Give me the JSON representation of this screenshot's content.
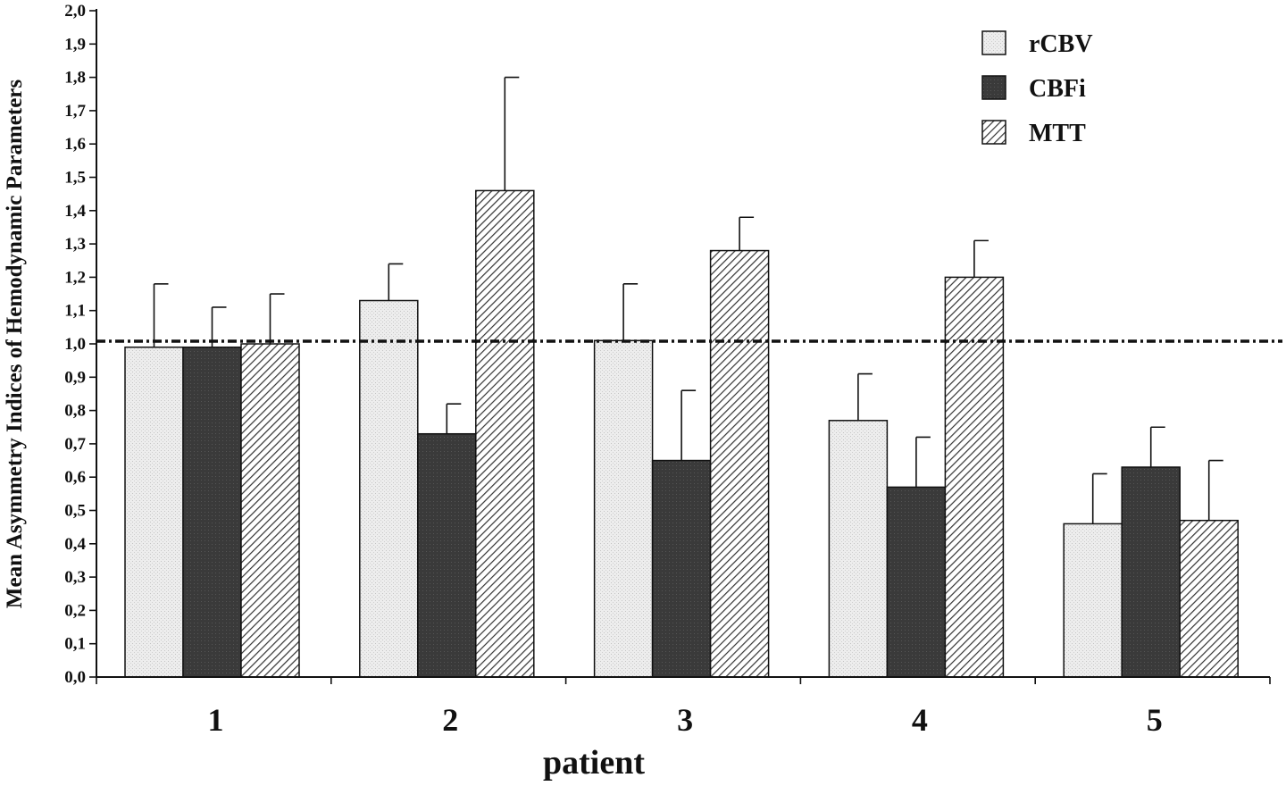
{
  "chart_data": {
    "type": "bar",
    "title": "",
    "xlabel": "patient",
    "ylabel": "Mean Asymmetry Indices of Hemodynamic Parameters",
    "ylim": [
      0,
      2.0
    ],
    "ytick_step": 0.1,
    "ytick_labels": [
      "0,0",
      "0,1",
      "0,2",
      "0,3",
      "0,4",
      "0,5",
      "0,6",
      "0,7",
      "0,8",
      "0,9",
      "1,0",
      "1,1",
      "1,2",
      "1,3",
      "1,4",
      "1,5",
      "1,6",
      "1,7",
      "1,8",
      "1,9",
      "2,0"
    ],
    "categories": [
      "1",
      "2",
      "3",
      "4",
      "5"
    ],
    "reference_line": 1.0,
    "legend_position": "top-right",
    "grid": false,
    "series": [
      {
        "name": "rCBV",
        "fill": "light-stipple",
        "color": "#e6e6e6",
        "values": [
          0.99,
          1.13,
          1.01,
          0.77,
          0.46
        ],
        "error": [
          0.19,
          0.11,
          0.17,
          0.14,
          0.15
        ]
      },
      {
        "name": "CBFi",
        "fill": "dark-solid",
        "color": "#3b3b3b",
        "values": [
          0.99,
          0.73,
          0.65,
          0.57,
          0.63
        ],
        "error": [
          0.12,
          0.09,
          0.21,
          0.15,
          0.12
        ]
      },
      {
        "name": "MTT",
        "fill": "diagonal-hatch",
        "color": "#444444",
        "values": [
          1.0,
          1.46,
          1.28,
          1.2,
          0.47
        ],
        "error": [
          0.15,
          0.34,
          0.1,
          0.11,
          0.18
        ]
      }
    ]
  }
}
